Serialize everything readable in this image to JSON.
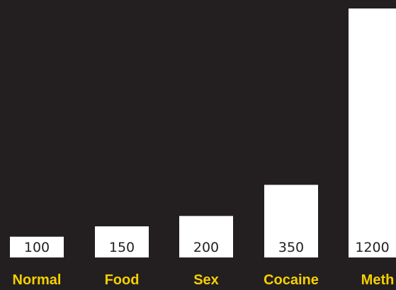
{
  "chart_data": {
    "type": "bar",
    "categories": [
      "Normal",
      "Food",
      "Sex",
      "Cocaine",
      "Meth"
    ],
    "values": [
      100,
      150,
      200,
      350,
      1200
    ],
    "data_labels": [
      "100",
      "150",
      "200",
      "350",
      "1200"
    ],
    "title": "",
    "xlabel": "",
    "ylabel": "",
    "ylim": [
      0,
      1200
    ],
    "grid": false,
    "legend": "none",
    "colors": {
      "background": "#231f20",
      "bar": "#ffffff",
      "value_label": "#231f20",
      "category_label": "#f5d000"
    }
  }
}
